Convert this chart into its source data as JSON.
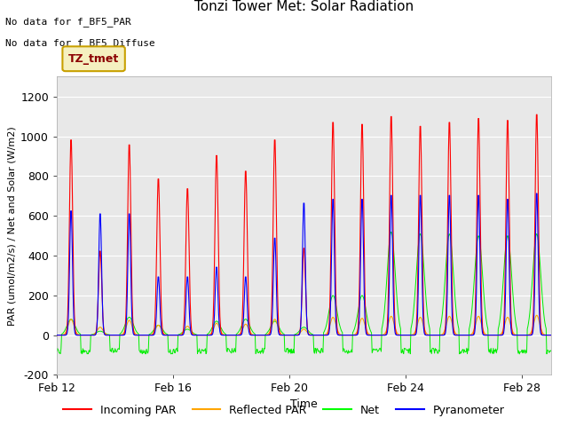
{
  "title": "Tonzi Tower Met: Solar Radiation",
  "xlabel": "Time",
  "ylabel": "PAR (umol/m2/s) / Net and Solar (W/m2)",
  "ylim": [
    -200,
    1300
  ],
  "yticks": [
    -200,
    0,
    200,
    400,
    600,
    800,
    1000,
    1200
  ],
  "xtick_positions": [
    0,
    4,
    8,
    12,
    16
  ],
  "xtick_labels": [
    "Feb 12",
    "Feb 16",
    "Feb 20",
    "Feb 24",
    "Feb 28"
  ],
  "colors": {
    "incoming_par": "red",
    "reflected_par": "orange",
    "net": "#00ee00",
    "pyranometer": "blue"
  },
  "notes": [
    "No data for f_BF5_PAR",
    "No data for f_BF5_Diffuse"
  ],
  "legend_box_color": "#f5f0c0",
  "legend_box_edge": "#c8a000",
  "legend_box_text": "TZ_tmet",
  "n_days": 17,
  "pts_per_day": 48,
  "incoming_par_peaks": [
    1000,
    430,
    975,
    800,
    750,
    920,
    840,
    1000,
    445,
    1090,
    1080,
    1120,
    1070,
    1090,
    1110,
    1100,
    1130
  ],
  "reflected_par_peaks": [
    80,
    40,
    75,
    50,
    45,
    60,
    55,
    80,
    30,
    90,
    85,
    95,
    90,
    95,
    95,
    90,
    100
  ],
  "pyranometer_peaks": [
    640,
    625,
    625,
    300,
    300,
    350,
    300,
    500,
    680,
    700,
    700,
    720,
    720,
    720,
    720,
    700,
    730
  ],
  "net_peaks_day": [
    80,
    20,
    90,
    50,
    30,
    70,
    80,
    70,
    40,
    200,
    200,
    520,
    510,
    510,
    500,
    500,
    510
  ],
  "net_night_base": -80,
  "grid_color": "#dddddd",
  "bg_color": "#e8e8e8",
  "title_fontsize": 11,
  "tick_fontsize": 9,
  "ylabel_fontsize": 8,
  "xlabel_fontsize": 9,
  "legend_fontsize": 9
}
